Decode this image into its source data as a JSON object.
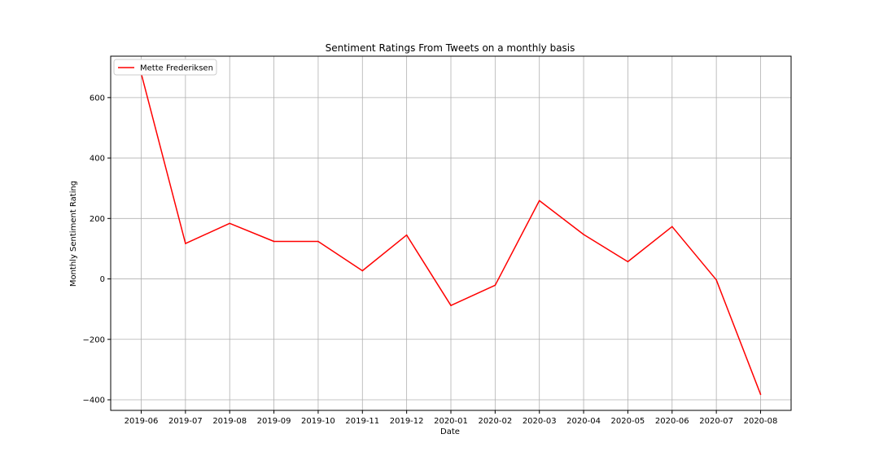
{
  "chart_data": {
    "type": "line",
    "title": "Sentiment Ratings From Tweets on a monthly basis",
    "xlabel": "Date",
    "ylabel": "Monthly Sentiment Rating",
    "x": [
      "2019-06",
      "2019-07",
      "2019-08",
      "2019-09",
      "2019-10",
      "2019-11",
      "2019-12",
      "2020-01",
      "2020-02",
      "2020-03",
      "2020-04",
      "2020-05",
      "2020-06",
      "2020-07",
      "2020-08"
    ],
    "yticks": [
      -400,
      -200,
      0,
      200,
      400,
      600
    ],
    "ylim": [
      -435,
      737
    ],
    "grid": true,
    "legend_position": "upper left",
    "series": [
      {
        "name": "Mette Frederiksen",
        "color": "#ff0000",
        "values": [
          680,
          117,
          184,
          124,
          124,
          27,
          145,
          -88,
          -21,
          259,
          147,
          57,
          173,
          -3,
          -382
        ]
      }
    ]
  }
}
